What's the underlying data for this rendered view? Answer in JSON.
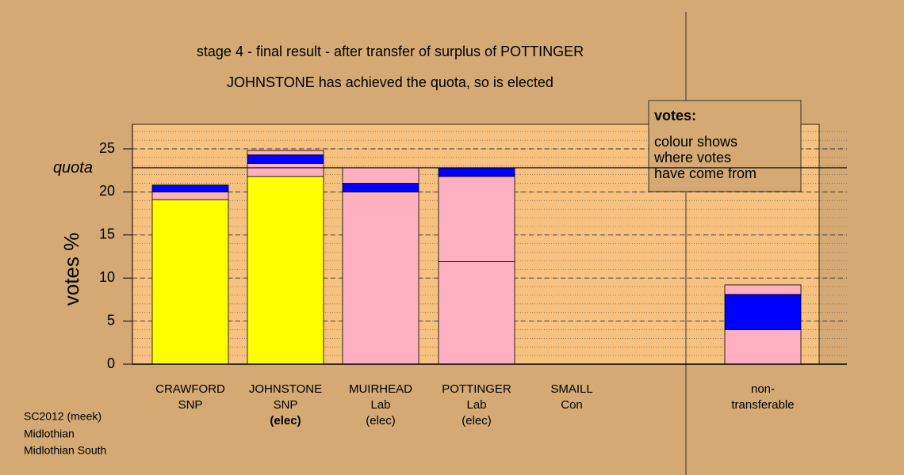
{
  "chart_data": {
    "type": "stacked-bar",
    "title": "stage 4 - final result - after transfer of surplus of POTTINGER",
    "subtitle": "JOHNSTONE has achieved the quota, so is elected",
    "y_label": "votes %",
    "ylim": [
      0,
      27.85
    ],
    "yticks": [
      0,
      5,
      10,
      15,
      20,
      25
    ],
    "grid": true,
    "minor_grid": 1,
    "quota": {
      "value": 22.8,
      "label": "quota"
    },
    "categories": [
      {
        "lines": [
          "CRAWFORD",
          "SNP"
        ],
        "bold_last": false
      },
      {
        "lines": [
          "JOHNSTONE",
          "SNP",
          "(elec)"
        ],
        "bold_last": true
      },
      {
        "lines": [
          "MUIRHEAD",
          "Lab",
          "(elec)"
        ],
        "bold_last": false
      },
      {
        "lines": [
          "POTTINGER",
          "Lab",
          "(elec)"
        ],
        "bold_last": false
      },
      {
        "lines": [
          "SMAILL",
          "Con"
        ],
        "bold_last": false
      },
      {
        "lines": [
          "non-",
          "transferable"
        ],
        "bold_last": false
      }
    ],
    "stacks": [
      [
        {
          "value": 19.1,
          "color": "#ffff00"
        },
        {
          "value": 0.9,
          "color": "#ffb0c0"
        },
        {
          "value": 0.8,
          "color": "#0000ff"
        }
      ],
      [
        {
          "value": 21.8,
          "color": "#ffff00"
        },
        {
          "value": 1.5,
          "color": "#ffb0c0"
        },
        {
          "value": 1.0,
          "color": "#0000ff"
        },
        {
          "value": 0.5,
          "color": "#ffb0c0"
        }
      ],
      [
        {
          "value": 20.0,
          "color": "#ffb0c0"
        },
        {
          "value": 1.0,
          "color": "#0000ff"
        },
        {
          "value": 1.8,
          "color": "#ffb0c0"
        }
      ],
      [
        {
          "value": 11.9,
          "color": "#ffb0c0"
        },
        {
          "value": 9.9,
          "color": "#ffb0c0"
        },
        {
          "value": 1.0,
          "color": "#0000ff"
        }
      ],
      [],
      [
        {
          "value": 4.0,
          "color": "#ffb0c0"
        },
        {
          "value": 4.1,
          "color": "#0000ff"
        },
        {
          "value": 1.1,
          "color": "#ffb0c0"
        }
      ]
    ],
    "legend": {
      "title": "votes:",
      "lines": [
        "colour shows",
        "where votes",
        "have come from"
      ]
    },
    "footer": [
      "SC2012 (meek)",
      "Midlothian",
      "Midlothian South"
    ]
  }
}
